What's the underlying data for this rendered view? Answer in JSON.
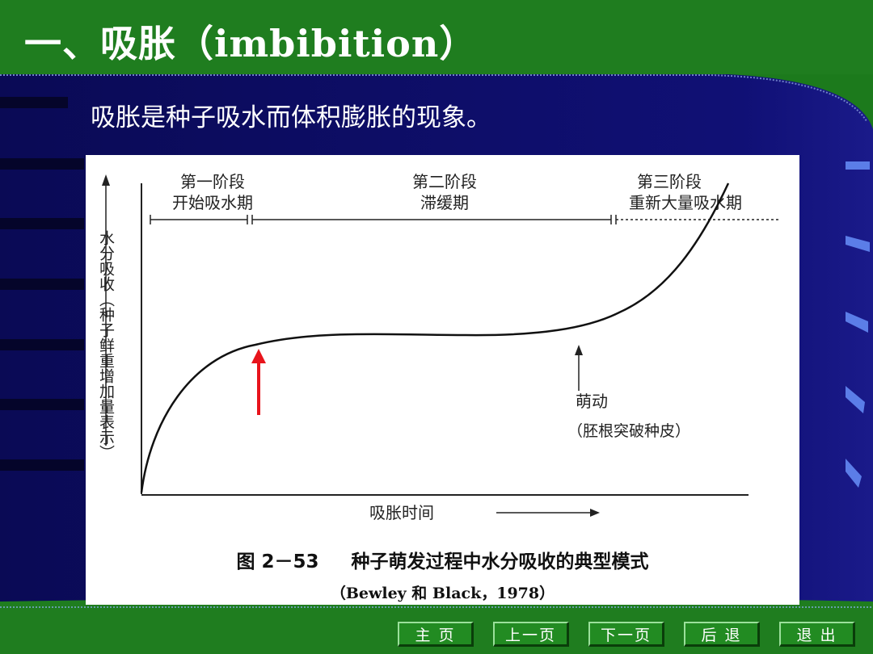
{
  "slide": {
    "title": "一、吸胀（imbibition）",
    "subtitle": "吸胀是种子吸水而体积膨胀的现象。"
  },
  "figure": {
    "stages": [
      {
        "name": "第一阶段",
        "desc": "开始吸水期"
      },
      {
        "name": "第二阶段",
        "desc": "滞缓期"
      },
      {
        "name": "第三阶段",
        "desc": "重新大量吸水期"
      }
    ],
    "y_axis_label": "水分吸收（种子鲜重增加量表示）",
    "x_axis_label": "吸胀时间",
    "annotation_label": "萌动",
    "annotation_detail": "（胚根突破种皮）",
    "caption_number": "图 2－53",
    "caption_text": "种子萌发过程中水分吸收的典型模式",
    "citation": "（Bewley 和 Black，1978）",
    "highlight_arrow_color": "#e8141c"
  },
  "nav": {
    "home": "主 页",
    "prev": "上一页",
    "next": "下一页",
    "back": "后 退",
    "exit": "退 出"
  },
  "colors": {
    "header_green": "#1f7d1f",
    "navy": "#0b0b5e",
    "title_text": "#ffffff"
  }
}
